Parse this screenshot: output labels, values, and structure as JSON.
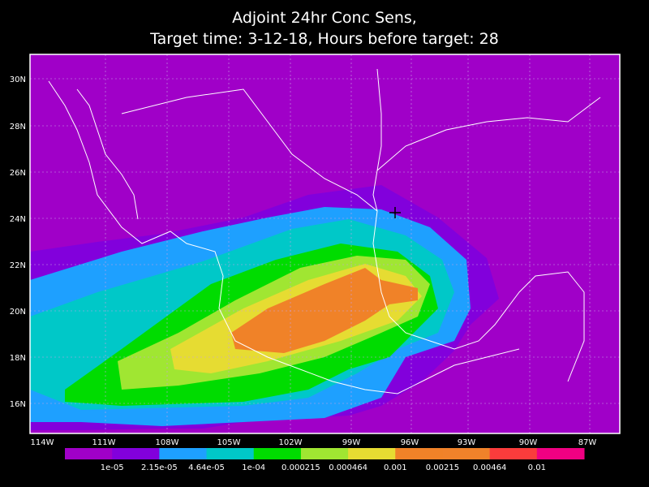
{
  "title": {
    "line1": "Adjoint 24hr Conc Sens,",
    "line2": "Target time: 3-12-18, Hours before target: 28"
  },
  "lat_labels": [
    "30N",
    "28N",
    "26N",
    "24N",
    "22N",
    "20N",
    "18N",
    "16N"
  ],
  "lon_labels": [
    "114W",
    "111W",
    "108W",
    "105W",
    "102W",
    "99W",
    "96W",
    "93W",
    "90W",
    "87W"
  ],
  "colorbar": {
    "colors": [
      "#a000c8",
      "#8200dc",
      "#1ea0ff",
      "#00c8c8",
      "#00dc00",
      "#a0e632",
      "#e6dc32",
      "#f08228",
      "#f0822a",
      "#fa3c3c",
      "#f00082"
    ],
    "labels": [
      "1e-05",
      "2.15e-05",
      "4.64e-05",
      "1e-04",
      "0.000215",
      "0.000464",
      "0.001",
      "0.00215",
      "0.00464",
      "0.01"
    ]
  }
}
